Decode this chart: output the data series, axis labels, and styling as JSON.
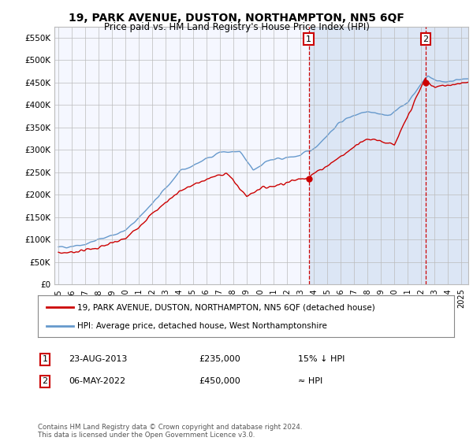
{
  "title": "19, PARK AVENUE, DUSTON, NORTHAMPTON, NN5 6QF",
  "subtitle": "Price paid vs. HM Land Registry's House Price Index (HPI)",
  "legend_line1": "19, PARK AVENUE, DUSTON, NORTHAMPTON, NN5 6QF (detached house)",
  "legend_line2": "HPI: Average price, detached house, West Northamptonshire",
  "annotation1_date": "23-AUG-2013",
  "annotation1_price": "£235,000",
  "annotation1_note": "15% ↓ HPI",
  "annotation2_date": "06-MAY-2022",
  "annotation2_price": "£450,000",
  "annotation2_note": "≈ HPI",
  "footer": "Contains HM Land Registry data © Crown copyright and database right 2024.\nThis data is licensed under the Open Government Licence v3.0.",
  "hpi_color": "#6699cc",
  "price_color": "#cc0000",
  "annotation_color": "#cc0000",
  "bg_color": "#e8eef8",
  "bg_color_before": "#f5f7ff",
  "grid_color": "#bbbbbb",
  "shade_color": "#dce6f5",
  "ylim": [
    0,
    575000
  ],
  "yticks": [
    0,
    50000,
    100000,
    150000,
    200000,
    250000,
    300000,
    350000,
    400000,
    450000,
    500000,
    550000
  ],
  "t1": 2013.625,
  "t2": 2022.333,
  "marker1_price": 235000,
  "marker2_price": 450000
}
